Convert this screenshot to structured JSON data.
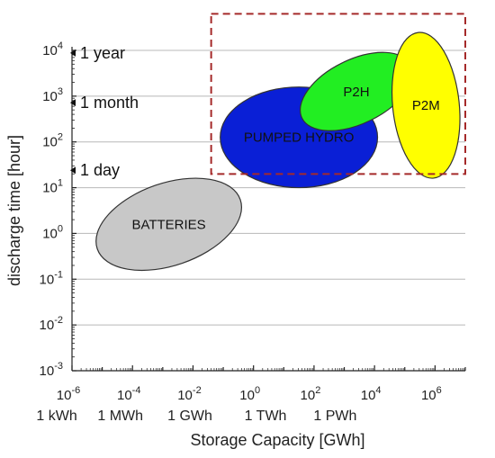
{
  "chart_data": {
    "type": "scatter",
    "xlabel": "Storage Capacity [GWh]",
    "ylabel": "discharge time [hour]",
    "x_scale": "log",
    "y_scale": "log",
    "xlim_exp": [
      -6,
      7
    ],
    "ylim_exp": [
      -3,
      4
    ],
    "x_ticks": [
      {
        "base": "10",
        "exp": "-6",
        "unit": "1 kWh"
      },
      {
        "base": "10",
        "exp": "-4",
        "unit": "1 MWh"
      },
      {
        "base": "10",
        "exp": "-2",
        "unit": "1 GWh"
      },
      {
        "base": "10",
        "exp": "0",
        "unit": "1 TWh"
      },
      {
        "base": "10",
        "exp": "2",
        "unit": "1 PWh"
      },
      {
        "base": "10",
        "exp": "4",
        "unit": ""
      },
      {
        "base": "10",
        "exp": "6",
        "unit": ""
      }
    ],
    "y_ticks": [
      {
        "base": "10",
        "exp": "-3"
      },
      {
        "base": "10",
        "exp": "-2"
      },
      {
        "base": "10",
        "exp": "-1"
      },
      {
        "base": "10",
        "exp": "0"
      },
      {
        "base": "10",
        "exp": "1"
      },
      {
        "base": "10",
        "exp": "2"
      },
      {
        "base": "10",
        "exp": "3"
      },
      {
        "base": "10",
        "exp": "4"
      }
    ],
    "time_markers": [
      {
        "label": "1 year",
        "hours": 8760
      },
      {
        "label": "1 month",
        "hours": 720
      },
      {
        "label": "1 day",
        "hours": 24
      }
    ],
    "grid": "horizontal",
    "regions": [
      {
        "name": "BATTERIES",
        "color": "#c8c8c8",
        "cx_exp": -2.8,
        "cy_exp": 0.2,
        "rx_dec": 2.5,
        "ry_dec": 0.9,
        "rotate": -19
      },
      {
        "name": "PUMPED HYDRO",
        "color": "#0a1fd6",
        "cx_exp": 1.5,
        "cy_exp": 2.1,
        "rx_dec": 2.6,
        "ry_dec": 1.1,
        "rotate": 0
      },
      {
        "name": "P2H",
        "color": "#22ee22",
        "cx_exp": 3.4,
        "cy_exp": 3.1,
        "rx_dec": 2.0,
        "ry_dec": 0.7,
        "rotate": -26
      },
      {
        "name": "P2M",
        "color": "#ffff00",
        "cx_exp": 5.7,
        "cy_exp": 2.8,
        "rx_dec": 1.1,
        "ry_dec": 1.6,
        "rotate": -6
      }
    ],
    "highlight_region": {
      "x_exp": [
        -1.4,
        7.0
      ],
      "y_exp": [
        1.3,
        4.8
      ],
      "style": "dashed",
      "color": "#a52a2a"
    }
  }
}
